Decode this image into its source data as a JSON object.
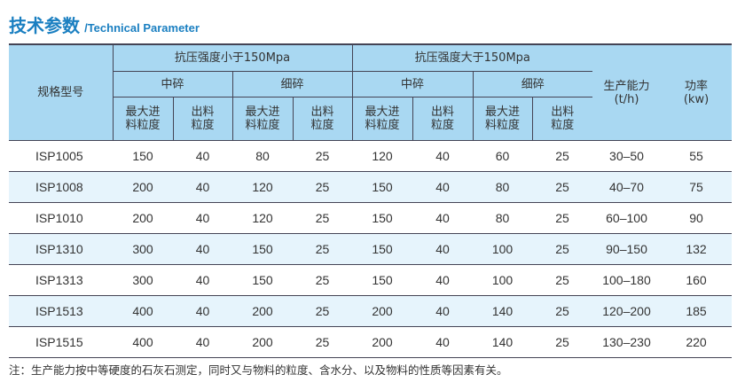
{
  "title": {
    "cn": "技术参数",
    "en": "/Technical Parameter"
  },
  "header": {
    "model": "规格型号",
    "group_low": "抗压强度小于150Mpa",
    "group_high": "抗压强度大于150Mpa",
    "medium": "中碎",
    "fine": "细碎",
    "max_feed": "最大进料粒度",
    "output": "出料粒度",
    "capacity": "生产能力",
    "capacity_unit": "(t/h)",
    "power": "功率",
    "power_unit": "(kw)"
  },
  "rows": [
    [
      "ISP1005",
      "150",
      "40",
      "80",
      "25",
      "120",
      "40",
      "60",
      "25",
      "30–50",
      "55"
    ],
    [
      "ISP1008",
      "200",
      "40",
      "120",
      "25",
      "150",
      "40",
      "80",
      "25",
      "40–70",
      "75"
    ],
    [
      "ISP1010",
      "200",
      "40",
      "120",
      "25",
      "150",
      "40",
      "80",
      "25",
      "60–100",
      "90"
    ],
    [
      "ISP1310",
      "300",
      "40",
      "150",
      "25",
      "150",
      "40",
      "100",
      "25",
      "90–150",
      "132"
    ],
    [
      "ISP1313",
      "300",
      "40",
      "150",
      "25",
      "150",
      "40",
      "100",
      "25",
      "100–180",
      "160"
    ],
    [
      "ISP1513",
      "400",
      "40",
      "200",
      "25",
      "200",
      "40",
      "140",
      "25",
      "120–200",
      "185"
    ],
    [
      "ISP1515",
      "400",
      "40",
      "200",
      "25",
      "200",
      "40",
      "140",
      "25",
      "130–230",
      "220"
    ]
  ],
  "note": "注：生产能力按中等硬度的石灰石测定，同时又与物料的粒度、含水分、以及物料的性质等因素有关。",
  "colors": {
    "title": "#1a7fc1",
    "header_bg": "#a9d8f2",
    "alt_row_bg": "#e6f4fc"
  }
}
